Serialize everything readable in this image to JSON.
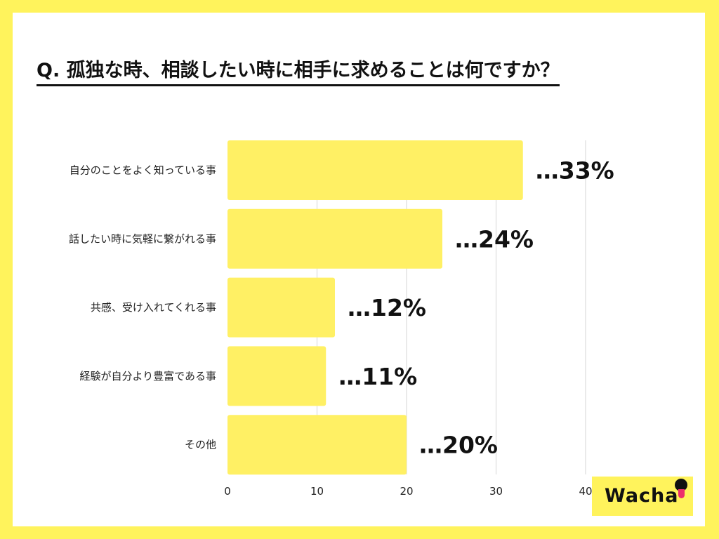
{
  "title": "Q. 孤独な時、相談したい時に相手に求めることは何ですか？",
  "brand": {
    "logo_text": "Wacha"
  },
  "colors": {
    "background": "#fff35c",
    "bar": "#fff064",
    "card": "#ffffff"
  },
  "chart_data": {
    "type": "bar",
    "orientation": "horizontal",
    "title": "Q. 孤独な時、相談したい時に相手に求めることは何ですか？",
    "categories": [
      "自分のことをよく知っている事",
      "話したい時に気軽に繋がれる事",
      "共感、受け入れてくれる事",
      "経験が自分より豊富である事",
      "その他"
    ],
    "values": [
      33,
      24,
      12,
      11,
      20
    ],
    "value_labels": [
      "…33%",
      "…24%",
      "…12%",
      "…11%",
      "…20%"
    ],
    "xlim": [
      0,
      40
    ],
    "xticks": [
      0,
      10,
      20,
      30,
      40
    ],
    "xlabel": "",
    "ylabel": "",
    "grid": true,
    "legend": "none"
  }
}
